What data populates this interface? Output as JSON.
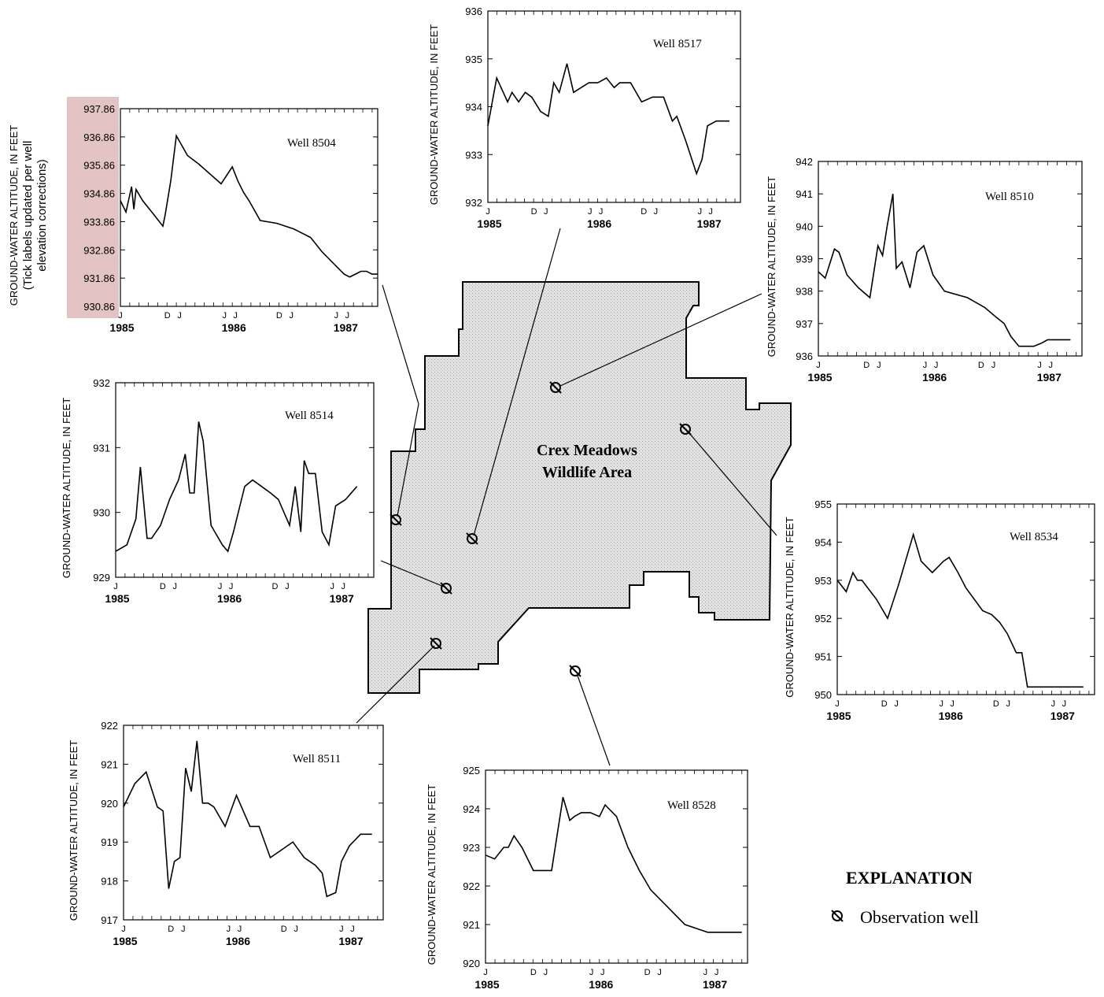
{
  "map": {
    "area_label_line1": "Crex Meadows",
    "area_label_line2": "Wildlife Area",
    "fill_color": "#d9d9d9"
  },
  "explanation": {
    "title": "EXPLANATION",
    "item_label": "Observation well",
    "item_icon": "observation-well-icon"
  },
  "chart_data": [
    {
      "type": "line",
      "id": "8504",
      "label": "Well 8504",
      "ylabel": "GROUND-WATER ALTITUDE, IN FEET",
      "note": [
        "(Tick labels updated per well",
        "elevation corrections)"
      ],
      "highlight_color": "#e3c3c3",
      "yticks": [
        "937.86",
        "936.86",
        "935.86",
        "934.86",
        "933.86",
        "932.86",
        "931.86",
        "930.86"
      ],
      "ylim": [
        930.86,
        937.86
      ],
      "month_ticks": [
        "J",
        "D",
        "J",
        "J",
        "J",
        "D",
        "J",
        "J",
        "J"
      ],
      "years": [
        "1985",
        "1986",
        "1987"
      ],
      "x": [
        0.0,
        0.05,
        0.1,
        0.12,
        0.14,
        0.2,
        0.3,
        0.38,
        0.4,
        0.45,
        0.5,
        0.6,
        0.7,
        0.9,
        1.0,
        1.05,
        1.1,
        1.15,
        1.25,
        1.4,
        1.55,
        1.7,
        1.8,
        1.9,
        2.0,
        2.05,
        2.1,
        2.15,
        2.2,
        2.25,
        2.3
      ],
      "values": [
        934.6,
        934.2,
        935.1,
        934.3,
        935.0,
        934.6,
        934.1,
        933.7,
        934.1,
        935.3,
        936.9,
        936.2,
        935.9,
        935.2,
        935.8,
        935.3,
        934.9,
        934.6,
        933.9,
        933.8,
        933.6,
        933.3,
        932.8,
        932.4,
        932.0,
        931.9,
        932.0,
        932.1,
        932.1,
        932.0,
        932.0
      ]
    },
    {
      "type": "line",
      "id": "8517",
      "label": "Well 8517",
      "ylabel": "GROUND-WATER ALTITUDE, IN FEET",
      "yticks": [
        "936",
        "935",
        "934",
        "933",
        "932"
      ],
      "ylim": [
        932,
        936
      ],
      "month_ticks": [
        "J",
        "D",
        "J",
        "J",
        "J",
        "D",
        "J",
        "J",
        "J"
      ],
      "years": [
        "1985",
        "1986",
        "1987"
      ],
      "x": [
        0.0,
        0.08,
        0.18,
        0.22,
        0.28,
        0.34,
        0.4,
        0.48,
        0.55,
        0.6,
        0.65,
        0.72,
        0.78,
        0.85,
        0.92,
        1.0,
        1.08,
        1.15,
        1.2,
        1.3,
        1.4,
        1.5,
        1.6,
        1.68,
        1.72,
        1.8,
        1.9,
        1.95,
        2.0,
        2.08,
        2.2
      ],
      "values": [
        933.6,
        934.6,
        934.1,
        934.3,
        934.1,
        934.3,
        934.2,
        933.9,
        933.8,
        934.5,
        934.3,
        934.9,
        934.3,
        934.4,
        934.5,
        934.5,
        934.6,
        934.4,
        934.5,
        934.5,
        934.1,
        934.2,
        934.2,
        933.7,
        933.8,
        933.3,
        932.6,
        932.9,
        933.6,
        933.7,
        933.7
      ]
    },
    {
      "type": "line",
      "id": "8510",
      "label": "Well 8510",
      "ylabel": "GROUND-WATER ALTITUDE, IN FEET",
      "yticks": [
        "942",
        "941",
        "940",
        "939",
        "938",
        "937",
        "936"
      ],
      "ylim": [
        936,
        942
      ],
      "month_ticks": [
        "J",
        "D",
        "J",
        "J",
        "J",
        "D",
        "J",
        "J",
        "J"
      ],
      "years": [
        "1985",
        "1986",
        "1987"
      ],
      "x": [
        0.0,
        0.06,
        0.14,
        0.18,
        0.25,
        0.35,
        0.45,
        0.52,
        0.56,
        0.6,
        0.65,
        0.68,
        0.73,
        0.8,
        0.86,
        0.92,
        1.0,
        1.1,
        1.3,
        1.45,
        1.55,
        1.62,
        1.68,
        1.75,
        1.8,
        1.88,
        1.95,
        2.0,
        2.1,
        2.2
      ],
      "values": [
        938.6,
        938.4,
        939.3,
        939.2,
        938.5,
        938.1,
        937.8,
        939.4,
        939.1,
        940.0,
        941.0,
        938.7,
        938.9,
        938.1,
        939.2,
        939.4,
        938.5,
        938.0,
        937.8,
        937.5,
        937.2,
        937.0,
        936.6,
        936.3,
        936.3,
        936.3,
        936.4,
        936.5,
        936.5,
        936.5
      ]
    },
    {
      "type": "line",
      "id": "8514",
      "label": "Well 8514",
      "ylabel": "GROUND-WATER ALTITUDE, IN FEET",
      "yticks": [
        "932",
        "931",
        "930",
        "929"
      ],
      "ylim": [
        929,
        932
      ],
      "month_ticks": [
        "J",
        "D",
        "J",
        "J",
        "J",
        "D",
        "J",
        "J",
        "J"
      ],
      "years": [
        "1985",
        "1986",
        "1987"
      ],
      "x": [
        0.0,
        0.1,
        0.18,
        0.22,
        0.28,
        0.32,
        0.4,
        0.48,
        0.56,
        0.62,
        0.66,
        0.7,
        0.74,
        0.78,
        0.85,
        0.95,
        1.0,
        1.05,
        1.15,
        1.22,
        1.3,
        1.38,
        1.45,
        1.5,
        1.55,
        1.6,
        1.65,
        1.68,
        1.72,
        1.78,
        1.84,
        1.9,
        1.96,
        2.05,
        2.15
      ],
      "values": [
        929.4,
        929.5,
        929.9,
        930.7,
        929.6,
        929.6,
        929.8,
        930.2,
        930.5,
        930.9,
        930.3,
        930.3,
        931.4,
        931.1,
        929.8,
        929.5,
        929.4,
        929.7,
        930.4,
        930.5,
        930.4,
        930.3,
        930.2,
        930.0,
        929.8,
        930.4,
        929.7,
        930.8,
        930.6,
        930.6,
        929.7,
        929.5,
        930.1,
        930.2,
        930.4
      ]
    },
    {
      "type": "line",
      "id": "8534",
      "label": "Well 8534",
      "ylabel": "GROUND-WATER ALTITUDE, IN FEET",
      "yticks": [
        "955",
        "954",
        "953",
        "952",
        "951",
        "950"
      ],
      "ylim": [
        950,
        955
      ],
      "month_ticks": [
        "J",
        "D",
        "J",
        "J",
        "J",
        "D",
        "J",
        "J",
        "J"
      ],
      "years": [
        "1985",
        "1986",
        "1987"
      ],
      "x": [
        0.0,
        0.08,
        0.14,
        0.18,
        0.22,
        0.35,
        0.45,
        0.55,
        0.62,
        0.68,
        0.75,
        0.85,
        0.95,
        1.0,
        1.08,
        1.15,
        1.3,
        1.38,
        1.45,
        1.52,
        1.6,
        1.65,
        1.7,
        1.75,
        1.78,
        1.82,
        1.9,
        1.98,
        2.08,
        2.2
      ],
      "values": [
        953.0,
        952.7,
        953.2,
        953.0,
        953.0,
        952.5,
        952.0,
        952.9,
        953.6,
        954.2,
        953.5,
        953.2,
        953.5,
        953.6,
        953.2,
        952.8,
        952.2,
        952.1,
        951.9,
        951.6,
        951.1,
        951.1,
        950.2,
        950.2,
        950.2,
        950.2,
        950.2,
        950.2,
        950.2,
        950.2
      ]
    },
    {
      "type": "line",
      "id": "8511",
      "label": "Well 8511",
      "ylabel": "GROUND-WATER ALTITUDE, IN FEET",
      "yticks": [
        "922",
        "921",
        "920",
        "919",
        "918",
        "917"
      ],
      "ylim": [
        917,
        922
      ],
      "month_ticks": [
        "J",
        "D",
        "J",
        "J",
        "J",
        "D",
        "J",
        "J",
        "J"
      ],
      "years": [
        "1985",
        "1986",
        "1987"
      ],
      "x": [
        0.0,
        0.1,
        0.2,
        0.3,
        0.35,
        0.4,
        0.45,
        0.5,
        0.55,
        0.6,
        0.65,
        0.7,
        0.75,
        0.8,
        0.9,
        1.0,
        1.06,
        1.12,
        1.2,
        1.3,
        1.4,
        1.5,
        1.6,
        1.7,
        1.76,
        1.8,
        1.88,
        1.93,
        2.0,
        2.1,
        2.2
      ],
      "values": [
        919.9,
        920.5,
        920.8,
        919.9,
        919.8,
        917.8,
        918.5,
        918.6,
        920.9,
        920.3,
        921.6,
        920.0,
        920.0,
        919.9,
        919.4,
        920.2,
        919.8,
        919.4,
        919.4,
        918.6,
        918.8,
        919.0,
        918.6,
        918.4,
        918.2,
        917.6,
        917.7,
        918.5,
        918.9,
        919.2,
        919.2
      ]
    },
    {
      "type": "line",
      "id": "8528",
      "label": "Well 8528",
      "ylabel": "GROUND-WATER ALTITUDE, IN FEET",
      "yticks": [
        "925",
        "924",
        "923",
        "922",
        "921",
        "920"
      ],
      "ylim": [
        920,
        925
      ],
      "month_ticks": [
        "J",
        "D",
        "J",
        "J",
        "J",
        "D",
        "J",
        "J",
        "J"
      ],
      "years": [
        "1985",
        "1986",
        "1987"
      ],
      "x": [
        0.0,
        0.08,
        0.16,
        0.2,
        0.25,
        0.32,
        0.42,
        0.5,
        0.58,
        0.68,
        0.74,
        0.78,
        0.84,
        0.92,
        1.0,
        1.05,
        1.15,
        1.25,
        1.35,
        1.45,
        1.55,
        1.65,
        1.75,
        1.85,
        1.95,
        2.05,
        2.15,
        2.25
      ],
      "values": [
        922.8,
        922.7,
        923.0,
        923.0,
        923.3,
        923.0,
        922.4,
        922.4,
        922.4,
        924.3,
        923.7,
        923.8,
        923.9,
        923.9,
        923.8,
        924.1,
        923.8,
        923.0,
        922.4,
        921.9,
        921.6,
        921.3,
        921.0,
        920.9,
        920.8,
        920.8,
        920.8,
        920.8
      ]
    }
  ]
}
